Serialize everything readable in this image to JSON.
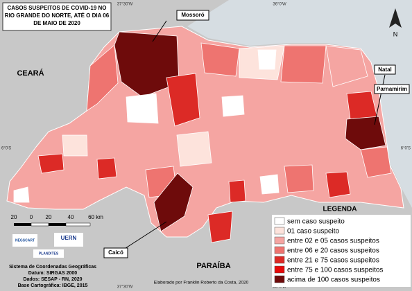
{
  "title": [
    "CASOS SUSPEITOS DE COVID-19 NO",
    "RIO GRANDE DO NORTE, ATÉ O DIA 06",
    "DE MAIO DE 2020"
  ],
  "north": "N",
  "graticule": {
    "top": [
      "37°30'W",
      "36°0'W"
    ],
    "bottom": [
      "37°30'W",
      "36°0'W"
    ],
    "left": "6°0'S",
    "right": "6°0'S"
  },
  "neighbors": {
    "west": "CEARÁ",
    "south": "PARAÍBA"
  },
  "cities": {
    "mossoro": "Mossoró",
    "natal": "Natal",
    "parnamirim": "Parnamirim",
    "caico": "Caicó"
  },
  "scale": [
    "20",
    "0",
    "20",
    "40",
    "60 km"
  ],
  "logos": [
    "NEGSCART",
    "UERN",
    "PLANDITES"
  ],
  "legend": {
    "title": "LEGENDA",
    "items": [
      {
        "label": "sem caso suspeito",
        "color": "#ffffff"
      },
      {
        "label": "01 caso suspeito",
        "color": "#fde3dc"
      },
      {
        "label": "entre 02 e 05 casos suspeitos",
        "color": "#f5a5a2"
      },
      {
        "label": "entre 06 e 20 casos suspeitos",
        "color": "#ee7470"
      },
      {
        "label": "entre 21 e 75 casos suspeitos",
        "color": "#dc2a26"
      },
      {
        "label": "entre 75 e 100 casos suspeitos",
        "color": "#e60a0a"
      },
      {
        "label": "acima de 100 casos suspeitos",
        "color": "#6e0b0b"
      }
    ]
  },
  "credits": [
    "Sistema de Coordenadas Geográficas",
    "Datum: SIRGAS 2000",
    "Dados: SESAP - RN, 2020",
    "Base Cartográfica: IBGE, 2015"
  ],
  "author": "Elaborado por Franklin Roberto da Costa, 2020"
}
